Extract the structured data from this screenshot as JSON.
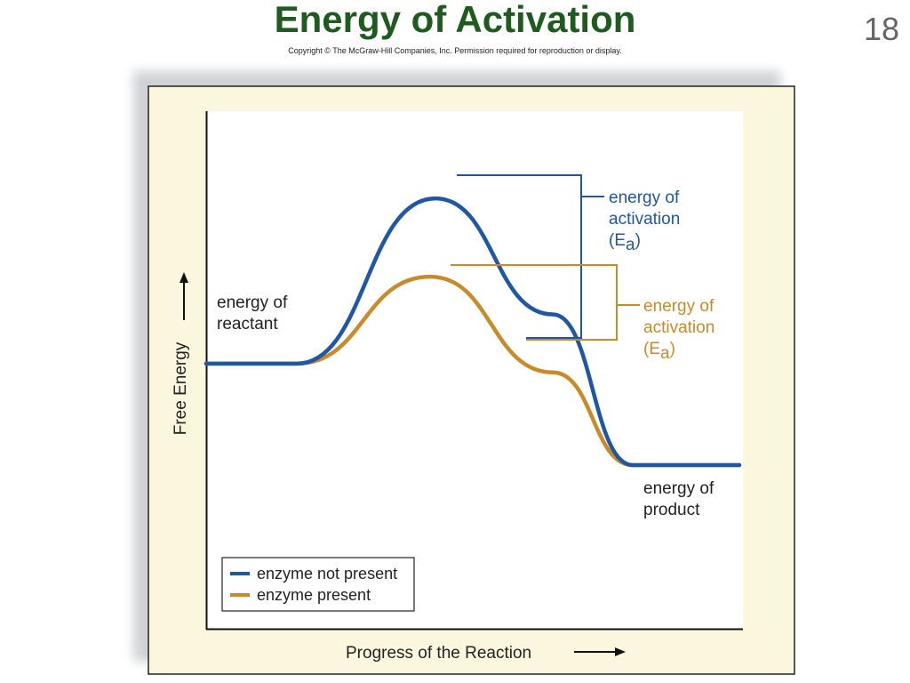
{
  "slide": {
    "title": "Energy of Activation",
    "copyright": "Copyright © The McGraw-Hill Companies, Inc. Permission required for reproduction or display.",
    "number": "18"
  },
  "colors": {
    "no_enzyme": "#1f57a5",
    "enzyme": "#c98b2a",
    "panel": "#fbf7de",
    "title": "#1f5a1f"
  },
  "chart_data": {
    "type": "line",
    "xlabel": "Progress of the Reaction",
    "ylabel": "Free Energy",
    "legend": {
      "placement": "bottom-left",
      "entries": [
        "enzyme not present",
        "enzyme present"
      ]
    },
    "grid": false,
    "series": [
      {
        "name": "enzyme not present",
        "color": "#1f57a5",
        "points": [
          [
            0,
            0.35
          ],
          [
            0.17,
            0.35
          ],
          [
            0.43,
            0.92
          ],
          [
            0.65,
            0.52
          ],
          [
            0.8,
            0.0
          ],
          [
            1,
            0.0
          ]
        ]
      },
      {
        "name": "enzyme present",
        "color": "#c98b2a",
        "points": [
          [
            0,
            0.35
          ],
          [
            0.17,
            0.35
          ],
          [
            0.42,
            0.65
          ],
          [
            0.65,
            0.32
          ],
          [
            0.8,
            0.0
          ],
          [
            1,
            0.0
          ]
        ]
      }
    ],
    "annotations": {
      "reactant": [
        "energy of",
        "reactant"
      ],
      "product": [
        "energy of",
        "product"
      ],
      "ea_no_enzyme": [
        "energy of",
        "activation",
        "(E",
        "a",
        ")"
      ],
      "ea_enzyme": [
        "energy of",
        "activation",
        "(E",
        "a",
        ")"
      ]
    }
  }
}
